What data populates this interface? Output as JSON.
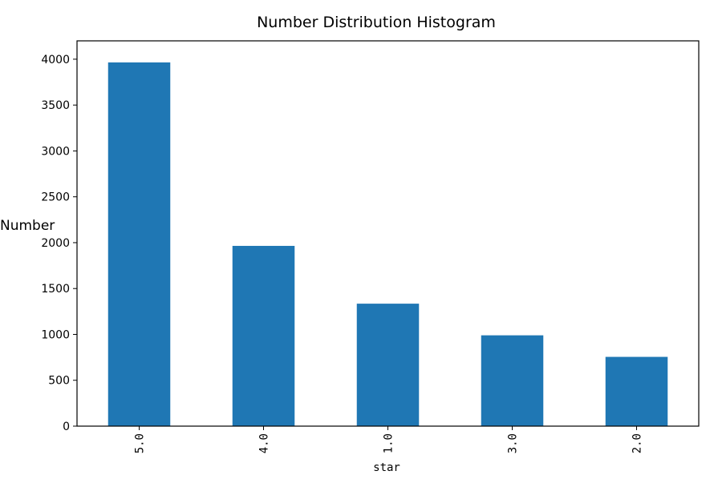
{
  "chart_data": {
    "type": "bar",
    "title": "Number Distribution Histogram",
    "xlabel": "star",
    "ylabel": "Number",
    "categories": [
      "5.0",
      "4.0",
      "1.0",
      "3.0",
      "2.0"
    ],
    "values": [
      3965,
      1965,
      1335,
      990,
      755
    ],
    "ylim": [
      0,
      4200
    ],
    "yticks": [
      0,
      500,
      1000,
      1500,
      2000,
      2500,
      3000,
      3500,
      4000
    ],
    "bar_color": "#1f77b4",
    "grid": false,
    "legend": "none"
  }
}
